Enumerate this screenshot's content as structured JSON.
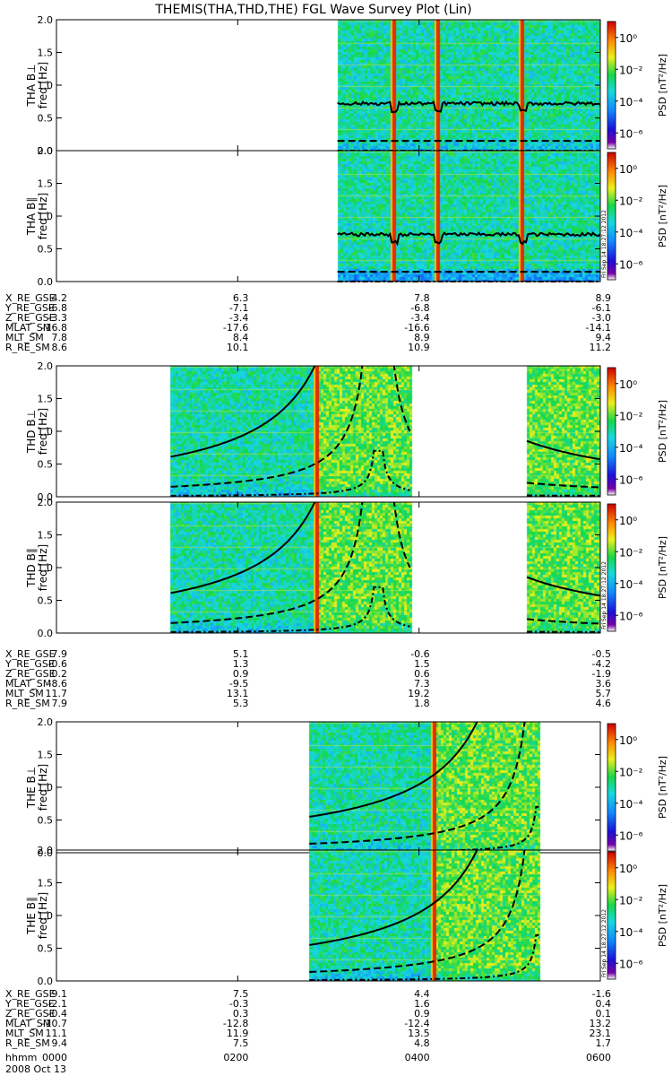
{
  "chart_data": {
    "type": "heatmap",
    "title": "THEMIS(THA,THD,THE) FGL Wave Survey Plot (Lin)",
    "date_label": "2008 Oct 13",
    "time_row_label": "hhmm",
    "time_ticks": [
      "0000",
      "0200",
      "0400",
      "0600"
    ],
    "x_range_hours": [
      0,
      6
    ],
    "y_label": "freq [Hz]",
    "y_ticks": [
      "0.0",
      "0.5",
      "1.0",
      "1.5",
      "2.0"
    ],
    "ylim": [
      0,
      2
    ],
    "colorbar_label": "PSD [nT²/Hz]",
    "colorbar_ticks": [
      "10⁰",
      "10⁻²",
      "10⁻⁴",
      "10⁻⁶"
    ],
    "colorbar_range_log10": [
      -7,
      1
    ],
    "stamp": "Fri Sep 14 18:27:12 2012",
    "orbit_row_labels": [
      "X_RE_GSE",
      "Y_RE_GSE",
      "Z_RE_GSE",
      "MLAT_SM",
      "MLT_SM",
      "R_RE_SM"
    ],
    "probes": [
      {
        "name": "THA",
        "panels": [
          {
            "label": "THA B⊥",
            "data_intervals": [
              [
                3.1,
                6.0
              ]
            ],
            "spike_times": [
              3.73,
              4.21,
              5.14
            ],
            "line_shape": "flat",
            "solid_level": 0.72,
            "dashed_level": 0.15,
            "dashdot_level": 0.0
          },
          {
            "label": "THA B∥",
            "data_intervals": [
              [
                3.1,
                6.0
              ]
            ],
            "spike_times": [
              3.73,
              4.21,
              5.14
            ],
            "line_shape": "flat",
            "solid_level": 0.72,
            "dashed_level": 0.15,
            "dashdot_level": 0.0
          }
        ],
        "orbit_values": [
          [
            "4.2",
            "6.3",
            "7.8",
            "8.9"
          ],
          [
            "-6.8",
            "-7.1",
            "-6.8",
            "-6.1"
          ],
          [
            "-3.3",
            "-3.4",
            "-3.4",
            "-3.0"
          ],
          [
            "-16.8",
            "-17.6",
            "-16.6",
            "-14.1"
          ],
          [
            "7.8",
            "8.4",
            "8.9",
            "9.4"
          ],
          [
            "8.6",
            "10.1",
            "10.9",
            "11.2"
          ]
        ]
      },
      {
        "name": "THD",
        "panels": [
          {
            "label": "THD B⊥",
            "data_intervals": [
              [
                1.26,
                3.9
              ],
              [
                5.19,
                6.0
              ]
            ],
            "spike_times": [
              2.88
            ],
            "line_shape": "rising",
            "perigee_hour": 3.55
          },
          {
            "label": "THD B∥",
            "data_intervals": [
              [
                1.26,
                3.9
              ],
              [
                5.19,
                6.0
              ]
            ],
            "spike_times": [
              2.88
            ],
            "line_shape": "rising",
            "perigee_hour": 3.55
          }
        ],
        "orbit_values": [
          [
            "7.9",
            "5.1",
            "-0.6",
            "-0.5"
          ],
          [
            "-0.6",
            "1.3",
            "1.5",
            "-4.2"
          ],
          [
            "0.2",
            "0.9",
            "0.6",
            "-1.9"
          ],
          [
            "-8.6",
            "-9.5",
            "7.3",
            "3.6"
          ],
          [
            "11.7",
            "13.1",
            "19.2",
            "5.7"
          ],
          [
            "7.9",
            "5.3",
            "1.8",
            "4.6"
          ]
        ]
      },
      {
        "name": "THE",
        "panels": [
          {
            "label": "THE B⊥",
            "data_intervals": [
              [
                2.79,
                5.32
              ]
            ],
            "spike_times": [
              4.17
            ],
            "line_shape": "rising",
            "perigee_hour": 5.34
          },
          {
            "label": "THE B∥",
            "data_intervals": [
              [
                2.79,
                5.32
              ]
            ],
            "spike_times": [
              4.17
            ],
            "line_shape": "rising",
            "perigee_hour": 5.34
          }
        ],
        "orbit_values": [
          [
            "9.1",
            "7.5",
            "4.4",
            "-1.6"
          ],
          [
            "-2.1",
            "-0.3",
            "1.6",
            "0.4"
          ],
          [
            "-0.4",
            "0.3",
            "0.9",
            "0.1"
          ],
          [
            "-10.7",
            "-12.8",
            "-12.4",
            "13.2"
          ],
          [
            "11.1",
            "11.9",
            "13.5",
            "23.1"
          ],
          [
            "9.4",
            "7.5",
            "4.8",
            "1.7"
          ]
        ]
      }
    ]
  }
}
